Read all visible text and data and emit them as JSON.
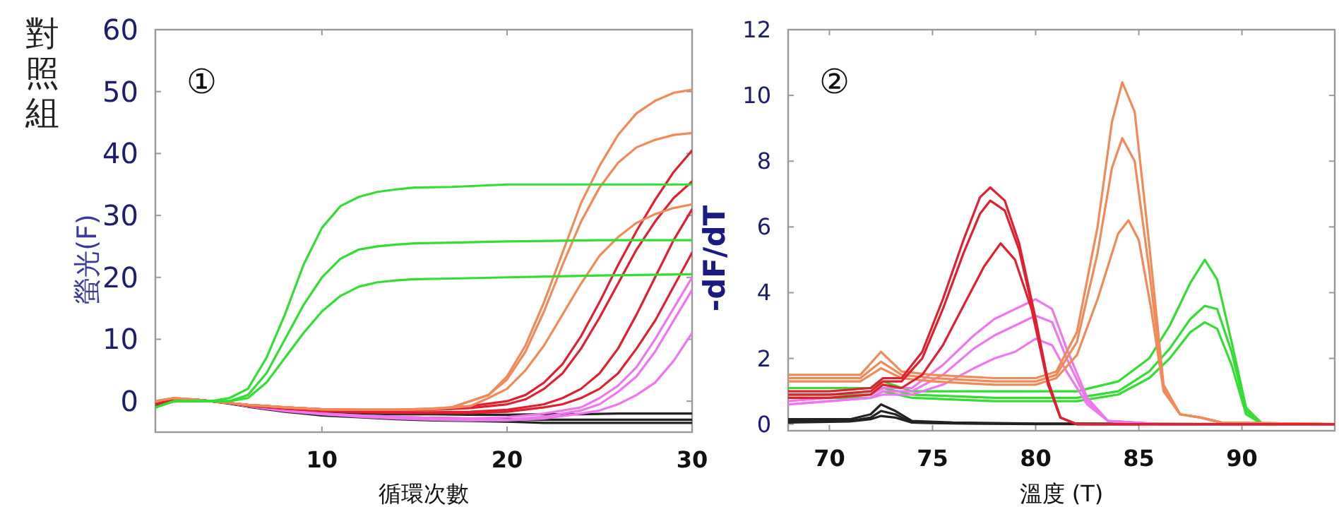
{
  "chart_data": [
    {
      "type": "line",
      "title": "對照組",
      "xlabel": "循環次數",
      "ylabel": "螢光(F)",
      "annotations": [
        "①"
      ],
      "xlim": [
        1,
        30
      ],
      "ylim": [
        -5,
        60
      ],
      "xticks": [
        10,
        20,
        30
      ],
      "yticks": [
        0,
        10,
        20,
        30,
        40,
        50,
        60
      ],
      "series": [
        {
          "color": "#222222",
          "x": [
            1,
            2,
            3,
            4,
            5,
            6,
            7,
            8,
            9,
            10,
            12,
            14,
            16,
            18,
            20,
            22,
            24,
            26,
            28,
            30
          ],
          "values": [
            -0.5,
            0,
            0.3,
            0,
            -0.3,
            -0.8,
            -1.2,
            -1.5,
            -1.7,
            -1.9,
            -2,
            -2.1,
            -2.1,
            -2.2,
            -2.2,
            -2.1,
            -2.1,
            -2,
            -2,
            -2
          ]
        },
        {
          "color": "#222222",
          "x": [
            1,
            2,
            3,
            4,
            5,
            6,
            7,
            8,
            9,
            10,
            12,
            14,
            16,
            18,
            20,
            22,
            24,
            26,
            28,
            30
          ],
          "values": [
            -0.5,
            0,
            0.2,
            0,
            -0.3,
            -0.8,
            -1.2,
            -1.6,
            -1.9,
            -2.1,
            -2.4,
            -2.6,
            -2.7,
            -2.8,
            -2.9,
            -3,
            -3,
            -3,
            -3,
            -3
          ]
        },
        {
          "color": "#222222",
          "x": [
            1,
            2,
            3,
            4,
            5,
            6,
            7,
            8,
            9,
            10,
            12,
            14,
            16,
            18,
            20,
            22,
            24,
            26,
            28,
            30
          ],
          "values": [
            -0.6,
            0,
            0.2,
            0,
            -0.4,
            -0.9,
            -1.3,
            -1.7,
            -2,
            -2.3,
            -2.6,
            -2.9,
            -3.1,
            -3.2,
            -3.3,
            -3.5,
            -3.5,
            -3.5,
            -3.5,
            -3.5
          ]
        },
        {
          "color": "#ee77ee",
          "x": [
            5,
            6,
            8,
            10,
            12,
            14,
            16,
            18,
            20,
            22,
            23,
            24,
            25,
            26,
            27,
            28,
            29,
            30
          ],
          "values": [
            -0.3,
            -0.8,
            -1.5,
            -2,
            -2.3,
            -2.5,
            -2.7,
            -2.8,
            -2.6,
            -2,
            -1.5,
            -1,
            0.5,
            2.5,
            5.5,
            10,
            15,
            20
          ]
        },
        {
          "color": "#ee77ee",
          "x": [
            5,
            6,
            8,
            10,
            12,
            14,
            16,
            18,
            20,
            22,
            24,
            25,
            26,
            27,
            28,
            29,
            30
          ],
          "values": [
            -0.3,
            -0.8,
            -1.5,
            -2,
            -2.3,
            -2.6,
            -2.8,
            -3,
            -3,
            -2.5,
            -1.5,
            -0.5,
            1.5,
            4,
            8,
            13,
            18
          ]
        },
        {
          "color": "#ee77ee",
          "x": [
            5,
            6,
            8,
            10,
            12,
            14,
            16,
            18,
            20,
            22,
            24,
            25,
            26,
            27,
            28,
            29,
            30
          ],
          "values": [
            -0.3,
            -0.8,
            -1.6,
            -2.1,
            -2.5,
            -2.8,
            -3,
            -3.1,
            -3.1,
            -2.8,
            -2,
            -1.5,
            -0.5,
            1,
            3,
            6.5,
            11
          ]
        },
        {
          "color": "#e02030",
          "x": [
            1,
            2,
            3,
            4,
            5,
            6,
            8,
            10,
            12,
            14,
            16,
            18,
            20,
            21,
            22,
            23,
            24,
            25,
            26,
            27,
            28,
            29,
            30
          ],
          "values": [
            -0.5,
            0.3,
            0.3,
            0,
            -0.3,
            -0.6,
            -1,
            -1.3,
            -1.4,
            -1.4,
            -1.3,
            -0.8,
            0,
            1,
            3,
            6,
            10.5,
            16,
            22,
            27.5,
            32.5,
            37,
            40.5
          ]
        },
        {
          "color": "#e02030",
          "x": [
            1,
            2,
            3,
            4,
            5,
            6,
            8,
            10,
            12,
            14,
            16,
            18,
            20,
            21,
            22,
            23,
            24,
            25,
            26,
            27,
            28,
            29,
            30
          ],
          "values": [
            -0.5,
            0.3,
            0.3,
            0,
            -0.3,
            -0.6,
            -1,
            -1.3,
            -1.5,
            -1.5,
            -1.4,
            -1.1,
            -0.5,
            0.3,
            2,
            4.5,
            8.5,
            13.5,
            19,
            24.5,
            29,
            32.8,
            35.5
          ]
        },
        {
          "color": "#e02030",
          "x": [
            1,
            2,
            3,
            4,
            5,
            6,
            8,
            10,
            12,
            14,
            16,
            18,
            20,
            22,
            23,
            24,
            25,
            26,
            27,
            28,
            29,
            30
          ],
          "values": [
            -0.5,
            0.3,
            0.3,
            0,
            -0.3,
            -0.7,
            -1.2,
            -1.5,
            -1.7,
            -1.8,
            -1.8,
            -1.7,
            -1.4,
            -0.5,
            0.5,
            2,
            4.5,
            8.5,
            14,
            20,
            26,
            31
          ]
        },
        {
          "color": "#e02030",
          "x": [
            1,
            2,
            3,
            4,
            5,
            6,
            8,
            10,
            12,
            14,
            16,
            18,
            20,
            22,
            23,
            24,
            25,
            26,
            27,
            28,
            29,
            30
          ],
          "values": [
            -0.5,
            0.3,
            0.3,
            0,
            -0.3,
            -0.7,
            -1.2,
            -1.6,
            -1.8,
            -1.9,
            -1.9,
            -1.9,
            -1.7,
            -1,
            -0.5,
            0.5,
            2,
            4.5,
            8.5,
            13,
            18.5,
            24
          ]
        },
        {
          "color": "#f08a58",
          "x": [
            1,
            2,
            3,
            4,
            5,
            6,
            8,
            10,
            12,
            14,
            16,
            17,
            18,
            19,
            20,
            21,
            22,
            23,
            24,
            25,
            26,
            27,
            28,
            29,
            30
          ],
          "values": [
            0,
            0.5,
            0.3,
            0,
            -0.3,
            -0.6,
            -1,
            -1.3,
            -1.4,
            -1.4,
            -1.2,
            -1,
            0,
            1,
            4,
            9,
            16,
            24,
            32,
            38,
            43,
            46.5,
            48.5,
            49.8,
            50.3
          ]
        },
        {
          "color": "#f08a58",
          "x": [
            1,
            2,
            3,
            4,
            5,
            6,
            8,
            10,
            12,
            14,
            16,
            17,
            18,
            19,
            20,
            21,
            22,
            23,
            24,
            25,
            26,
            27,
            28,
            29,
            30
          ],
          "values": [
            0,
            0.5,
            0.3,
            0,
            -0.3,
            -0.6,
            -1,
            -1.3,
            -1.4,
            -1.4,
            -1.2,
            -1,
            0,
            1,
            3.5,
            8,
            14.5,
            22,
            29,
            34.5,
            38.5,
            41,
            42.2,
            43,
            43.3
          ]
        },
        {
          "color": "#f08a58",
          "x": [
            1,
            2,
            3,
            4,
            5,
            6,
            8,
            10,
            12,
            14,
            16,
            18,
            19,
            20,
            21,
            22,
            23,
            24,
            25,
            26,
            27,
            28,
            29,
            30
          ],
          "values": [
            0,
            0.5,
            0.3,
            0,
            -0.3,
            -0.6,
            -1,
            -1.3,
            -1.4,
            -1.4,
            -1.3,
            -0.8,
            0.5,
            2,
            5,
            9,
            14,
            19,
            23.5,
            26.5,
            28.8,
            30.2,
            31.2,
            31.8
          ]
        },
        {
          "color": "#33dd33",
          "x": [
            1,
            2,
            3,
            4,
            5,
            6,
            7,
            8,
            9,
            10,
            11,
            12,
            13,
            14,
            15,
            17,
            20,
            25,
            30
          ],
          "values": [
            -1,
            0,
            0,
            0,
            0.5,
            2,
            7,
            14,
            22,
            28,
            31.5,
            33,
            33.8,
            34.2,
            34.5,
            34.6,
            35,
            35,
            35
          ]
        },
        {
          "color": "#33dd33",
          "x": [
            1,
            2,
            3,
            4,
            5,
            6,
            7,
            8,
            9,
            10,
            11,
            12,
            13,
            14,
            15,
            17,
            20,
            25,
            30
          ],
          "values": [
            -1,
            0,
            0,
            0,
            0,
            1,
            4.5,
            10,
            15.5,
            20,
            23,
            24.5,
            25,
            25.3,
            25.5,
            25.6,
            25.8,
            26,
            26
          ]
        },
        {
          "color": "#33dd33",
          "x": [
            1,
            2,
            3,
            4,
            5,
            6,
            7,
            8,
            9,
            10,
            11,
            12,
            13,
            14,
            15,
            17,
            20,
            25,
            30
          ],
          "values": [
            -1,
            0,
            0,
            0,
            0,
            0.5,
            3,
            7,
            11,
            14.5,
            17,
            18.5,
            19.2,
            19.5,
            19.7,
            19.8,
            20,
            20.3,
            20.5
          ]
        }
      ]
    },
    {
      "type": "line",
      "xlabel": "溫度 (T)",
      "ylabel": "-dF/dT",
      "annotations": [
        "②"
      ],
      "xlim": [
        68,
        94.5
      ],
      "ylim": [
        -0.2,
        12
      ],
      "xticks": [
        70,
        75,
        80,
        85,
        90
      ],
      "yticks": [
        0,
        2,
        4,
        6,
        8,
        10,
        12
      ],
      "series": [
        {
          "color": "#222222",
          "x": [
            68,
            71,
            72,
            72.5,
            73.2,
            74,
            76,
            80,
            90
          ],
          "values": [
            0.15,
            0.15,
            0.3,
            0.6,
            0.4,
            0.1,
            0.05,
            0.02,
            0
          ]
        },
        {
          "color": "#222222",
          "x": [
            68,
            71,
            72,
            72.5,
            73.2,
            74,
            76,
            80,
            85
          ],
          "values": [
            0.1,
            0.1,
            0.2,
            0.4,
            0.3,
            0.05,
            0.03,
            0.01,
            0
          ]
        },
        {
          "color": "#222222",
          "x": [
            68,
            71,
            72,
            72.5,
            73.2,
            74,
            76,
            80,
            94.5
          ],
          "values": [
            0.05,
            0.08,
            0.15,
            0.25,
            0.2,
            0.05,
            0.02,
            0,
            0
          ]
        },
        {
          "color": "#33dd33",
          "x": [
            68,
            70,
            72,
            72.6,
            74,
            78,
            82,
            84,
            85.5,
            86.5,
            87.5,
            88.2,
            88.8,
            89.5,
            90.2,
            91,
            94.5
          ],
          "values": [
            1.1,
            1.1,
            1.1,
            1.3,
            1,
            1,
            1,
            1.3,
            2,
            3,
            4.3,
            5,
            4.4,
            2.5,
            0.5,
            0,
            0
          ]
        },
        {
          "color": "#33dd33",
          "x": [
            68,
            70,
            72,
            72.6,
            74,
            78,
            82,
            84,
            85.5,
            86.5,
            87.5,
            88.2,
            88.8,
            89.5,
            90.2,
            91,
            94.5
          ],
          "values": [
            0.9,
            0.9,
            0.9,
            1.1,
            0.9,
            0.8,
            0.8,
            1,
            1.6,
            2.3,
            3.2,
            3.6,
            3.5,
            2.2,
            0.4,
            0,
            0
          ]
        },
        {
          "color": "#33dd33",
          "x": [
            68,
            70,
            72,
            72.6,
            74,
            78,
            82,
            84,
            85.5,
            86.5,
            87.5,
            88.2,
            88.8,
            89.5,
            90.2,
            91,
            94.5
          ],
          "values": [
            0.8,
            0.8,
            0.8,
            1,
            0.8,
            0.7,
            0.7,
            0.9,
            1.4,
            2,
            2.8,
            3.1,
            2.9,
            1.8,
            0.3,
            0,
            0
          ]
        },
        {
          "color": "#ee77ee",
          "x": [
            68,
            70,
            72,
            72.6,
            74,
            75.5,
            77,
            78,
            79,
            80,
            80.8,
            81.5,
            82.5,
            83.5,
            86,
            94.5
          ],
          "values": [
            0.7,
            0.8,
            0.9,
            1.1,
            1.1,
            1.8,
            2.7,
            3.2,
            3.5,
            3.8,
            3.5,
            2.3,
            0.8,
            0.1,
            0,
            0
          ]
        },
        {
          "color": "#ee77ee",
          "x": [
            68,
            70,
            72,
            72.6,
            74,
            75.5,
            77,
            78,
            79,
            80,
            80.8,
            81.5,
            82.5,
            83.5,
            86,
            94.5
          ],
          "values": [
            0.6,
            0.7,
            0.8,
            1,
            1,
            1.5,
            2.3,
            2.7,
            3,
            3.3,
            3.1,
            2,
            0.7,
            0.1,
            0,
            0
          ]
        },
        {
          "color": "#ee77ee",
          "x": [
            68,
            70,
            72,
            72.6,
            74,
            75.5,
            77,
            78,
            79,
            80,
            80.8,
            81.5,
            82.5,
            83.5,
            86,
            94.5
          ],
          "values": [
            0.6,
            0.7,
            0.8,
            0.9,
            0.9,
            1.2,
            1.7,
            2,
            2.2,
            2.6,
            2.4,
            1.6,
            0.6,
            0.1,
            0,
            0
          ]
        },
        {
          "color": "#f08a58",
          "x": [
            68,
            70,
            71.5,
            72.5,
            73.5,
            75,
            78,
            80,
            81,
            82,
            83,
            83.7,
            84.2,
            84.8,
            85.5,
            86.2,
            87,
            88,
            89,
            94.5
          ],
          "values": [
            1.5,
            1.5,
            1.5,
            2.2,
            1.6,
            1.5,
            1.4,
            1.4,
            1.6,
            2.8,
            6,
            9.2,
            10.4,
            9.5,
            5.5,
            1.2,
            0.3,
            0.2,
            0.05,
            0
          ]
        },
        {
          "color": "#f08a58",
          "x": [
            68,
            70,
            71.5,
            72.5,
            73.5,
            75,
            78,
            80,
            81,
            82,
            83,
            83.7,
            84.2,
            84.8,
            85.5,
            86.2,
            87,
            88,
            89,
            94.5
          ],
          "values": [
            1.4,
            1.4,
            1.4,
            1.9,
            1.5,
            1.4,
            1.3,
            1.3,
            1.5,
            2.5,
            5.2,
            7.8,
            8.7,
            8,
            4.7,
            1.1,
            0.3,
            0.2,
            0.05,
            0
          ]
        },
        {
          "color": "#f08a58",
          "x": [
            68,
            70,
            71.5,
            72.5,
            73.5,
            75,
            78,
            80,
            81,
            82,
            83,
            84,
            84.5,
            85,
            85.6,
            86.2,
            87,
            88,
            89,
            94.5
          ],
          "values": [
            1.3,
            1.3,
            1.3,
            1.7,
            1.4,
            1.3,
            1.2,
            1.2,
            1.4,
            2.1,
            3.8,
            5.8,
            6.2,
            5.6,
            3.5,
            1,
            0.3,
            0.2,
            0.05,
            0
          ]
        },
        {
          "color": "#e02030",
          "x": [
            68,
            70,
            72,
            72.6,
            73.5,
            74.5,
            75.5,
            76.5,
            77.3,
            77.8,
            78.5,
            79.2,
            80,
            80.6,
            81.2,
            82,
            86,
            94.5
          ],
          "values": [
            1,
            1,
            1.1,
            1.4,
            1.4,
            2.2,
            3.8,
            5.6,
            6.9,
            7.2,
            6.8,
            5.5,
            3.2,
            1.3,
            0.2,
            0,
            0,
            0
          ]
        },
        {
          "color": "#e02030",
          "x": [
            68,
            70,
            72,
            72.6,
            73.5,
            74.5,
            75.5,
            76.5,
            77.3,
            77.8,
            78.5,
            79.2,
            80,
            80.6,
            81.2,
            82,
            86,
            94.5
          ],
          "values": [
            0.9,
            0.9,
            1,
            1.3,
            1.3,
            2,
            3.5,
            5.2,
            6.4,
            6.8,
            6.5,
            5.3,
            3.1,
            1.2,
            0.2,
            0,
            0,
            0
          ]
        },
        {
          "color": "#e02030",
          "x": [
            68,
            70,
            72,
            72.6,
            73.5,
            74.5,
            75.5,
            76.5,
            77.5,
            78.3,
            79,
            79.8,
            80.5,
            81.2,
            82,
            86,
            94.5
          ],
          "values": [
            0.8,
            0.8,
            0.9,
            1.2,
            1.1,
            1.5,
            2.4,
            3.6,
            4.8,
            5.5,
            5,
            3.5,
            1.5,
            0.2,
            0,
            0,
            0
          ]
        }
      ]
    }
  ]
}
